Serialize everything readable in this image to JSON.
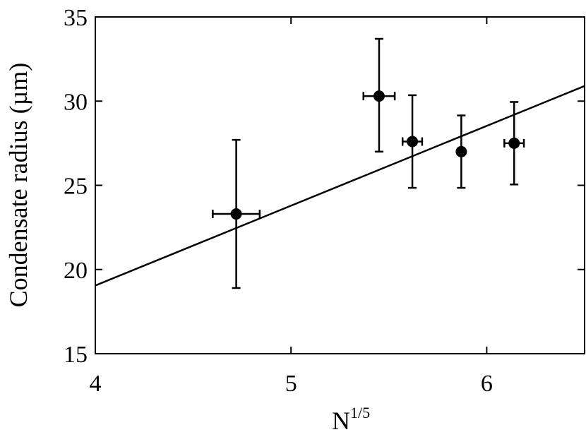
{
  "chart_data": {
    "type": "scatter",
    "title": "",
    "xlabel": "N",
    "xlabel_superscript": "1/5",
    "ylabel": "Condensate radius (µm)",
    "xlim": [
      4,
      6.5
    ],
    "ylim": [
      15,
      35
    ],
    "xticks": [
      4,
      5,
      6
    ],
    "yticks": [
      15,
      20,
      25,
      30,
      35
    ],
    "grid": false,
    "legend": "none",
    "series": [
      {
        "points": [
          {
            "x": 4.72,
            "y": 23.3,
            "xerr": 0.12,
            "yerr_low": 4.4,
            "yerr_high": 4.4
          },
          {
            "x": 5.45,
            "y": 30.3,
            "xerr": 0.08,
            "yerr_low": 3.3,
            "yerr_high": 3.4
          },
          {
            "x": 5.62,
            "y": 27.6,
            "xerr": 0.05,
            "yerr_low": 2.75,
            "yerr_high": 2.75
          },
          {
            "x": 5.87,
            "y": 27.0,
            "xerr": 0.0,
            "yerr_low": 2.15,
            "yerr_high": 2.15
          },
          {
            "x": 6.14,
            "y": 27.5,
            "xerr": 0.05,
            "yerr_low": 2.45,
            "yerr_high": 2.45
          }
        ],
        "color": "#000000"
      }
    ],
    "fit_line": {
      "x": [
        4,
        6.5
      ],
      "y": [
        19.05,
        30.9
      ],
      "color": "#000000"
    }
  }
}
